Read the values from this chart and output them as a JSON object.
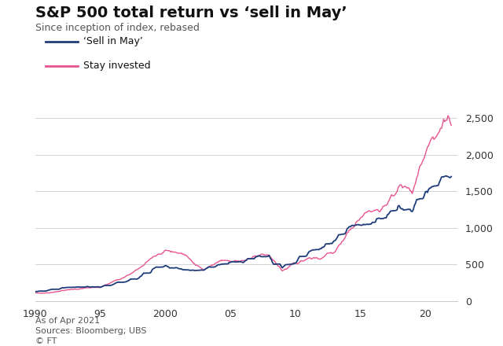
{
  "title": "S&P 500 total return vs ‘sell in May’",
  "subtitle": "Since inception of index, rebased",
  "footnote1": "As of Apr 2021",
  "footnote2": "Sources: Bloomberg; UBS",
  "footnote3": "© FT",
  "legend_sell": "‘Sell in May’",
  "legend_stay": "Stay invested",
  "color_sell": "#1f3d7a",
  "color_stay": "#e8538f",
  "xlim": [
    1990,
    2022.5
  ],
  "ylim": [
    0,
    2600
  ],
  "yticks": [
    0,
    500,
    1000,
    1500,
    2000,
    2500
  ],
  "xticks": [
    1990,
    1995,
    2000,
    2005,
    2010,
    2015,
    2020
  ],
  "xticklabels": [
    "1990",
    "95",
    "2000",
    "05",
    "10",
    "15",
    "20"
  ],
  "background_color": "#ffffff",
  "grid_color": "#cccccc",
  "title_fontsize": 14,
  "subtitle_fontsize": 9,
  "axis_fontsize": 9,
  "legend_fontsize": 9,
  "footnote_fontsize": 8
}
